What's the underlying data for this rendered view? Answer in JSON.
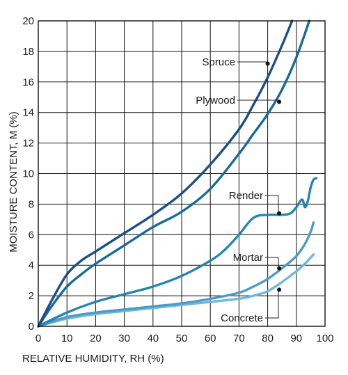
{
  "chart_data": {
    "type": "line",
    "xlabel": "RELATIVE HUMIDITY, RH (%)",
    "ylabel": "MOISTURE CONTENT, M (%)",
    "xlim": [
      0,
      100
    ],
    "ylim": [
      0,
      20
    ],
    "xticks": [
      0,
      10,
      20,
      30,
      40,
      50,
      60,
      70,
      80,
      90,
      100
    ],
    "yticks": [
      0,
      2,
      4,
      6,
      8,
      10,
      12,
      14,
      16,
      18,
      20
    ],
    "grid": true,
    "legend": "inline leader labels",
    "series": [
      {
        "name": "Spruce",
        "color": "#1a4f86",
        "x": [
          0,
          5,
          10,
          15,
          20,
          30,
          40,
          50,
          60,
          70,
          75,
          80,
          85,
          88.5
        ],
        "y": [
          0,
          1.8,
          3.4,
          4.3,
          4.9,
          6.1,
          7.3,
          8.7,
          10.6,
          12.9,
          14.5,
          16.3,
          18.4,
          20
        ]
      },
      {
        "name": "Plywood",
        "color": "#176a9c",
        "x": [
          0,
          5,
          10,
          15,
          20,
          30,
          40,
          50,
          60,
          70,
          75,
          80,
          85,
          90,
          94.5
        ],
        "y": [
          0,
          1.4,
          2.6,
          3.4,
          4.1,
          5.3,
          6.5,
          7.5,
          9.0,
          11.3,
          12.6,
          13.9,
          15.5,
          17.6,
          20
        ]
      },
      {
        "name": "Render",
        "color": "#2585b2",
        "x": [
          0,
          10,
          20,
          30,
          40,
          50,
          60,
          65,
          70,
          75,
          80,
          85,
          88,
          90,
          92,
          93,
          94,
          95,
          96,
          97
        ],
        "y": [
          0,
          0.9,
          1.6,
          2.1,
          2.6,
          3.3,
          4.3,
          5.0,
          6.0,
          7.1,
          7.3,
          7.3,
          7.4,
          7.8,
          8.3,
          7.8,
          8.2,
          9.1,
          9.6,
          9.7
        ]
      },
      {
        "name": "Mortar",
        "color": "#4d9ac7",
        "x": [
          0,
          10,
          20,
          30,
          40,
          50,
          60,
          70,
          75,
          80,
          85,
          90,
          93,
          95,
          96
        ],
        "y": [
          0,
          0.6,
          0.9,
          1.1,
          1.3,
          1.5,
          1.8,
          2.2,
          2.6,
          3.1,
          3.8,
          4.6,
          5.4,
          6.2,
          6.8
        ]
      },
      {
        "name": "Concrete",
        "color": "#6cb9de",
        "x": [
          0,
          10,
          20,
          30,
          40,
          50,
          60,
          70,
          75,
          80,
          85,
          90,
          93,
          95,
          96
        ],
        "y": [
          0,
          0.5,
          0.8,
          1.0,
          1.2,
          1.4,
          1.6,
          1.8,
          2.0,
          2.3,
          2.9,
          3.6,
          4.1,
          4.5,
          4.7
        ]
      }
    ],
    "annotations": [
      {
        "series": "Spruce",
        "text": "Spruce",
        "x": 80,
        "y": 17.2
      },
      {
        "series": "Plywood",
        "text": "Plywood",
        "x": 84,
        "y": 14.7
      },
      {
        "series": "Render",
        "text": "Render",
        "x": 84,
        "y": 7.4
      },
      {
        "series": "Mortar",
        "text": "Mortar",
        "x": 84,
        "y": 3.8
      },
      {
        "series": "Concrete",
        "text": "Concrete",
        "x": 84,
        "y": 2.4
      }
    ]
  }
}
